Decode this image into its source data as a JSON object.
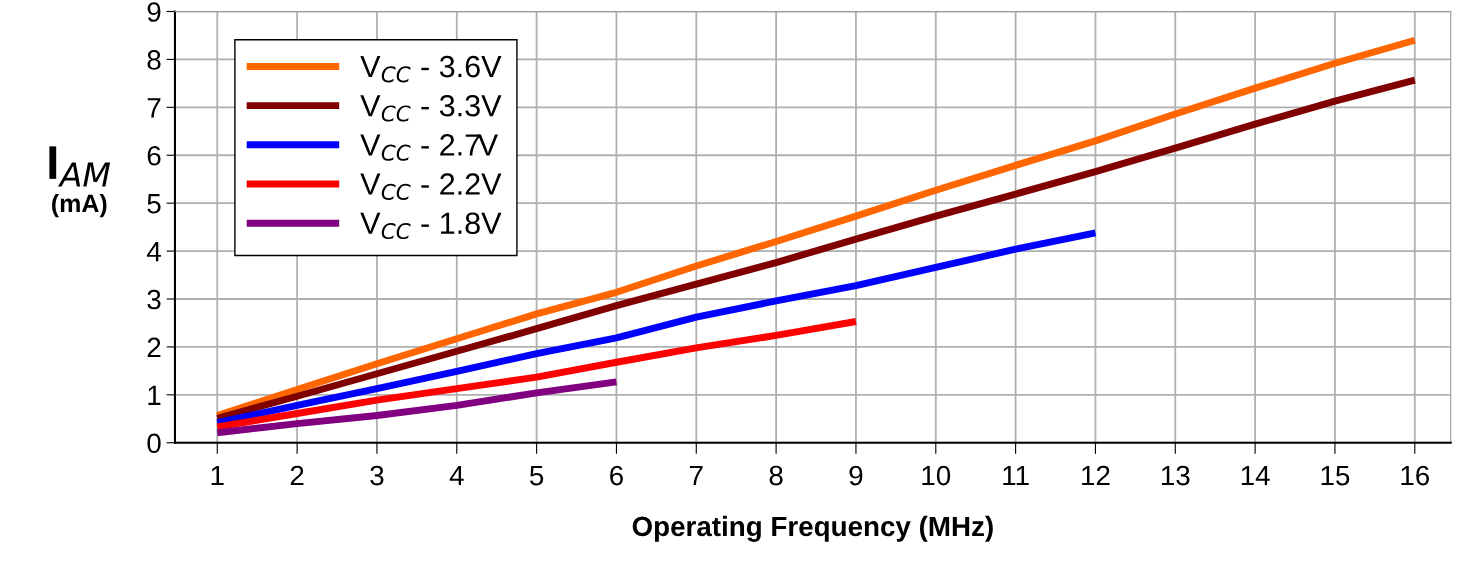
{
  "chart_data": {
    "type": "line",
    "xlabel": "Operating Frequency (MHz)",
    "ylabel": "I$_{AM}$\n(mA)",
    "x": [
      1,
      2,
      3,
      4,
      5,
      6,
      7,
      8,
      9,
      10,
      11,
      12,
      13,
      14,
      15,
      16
    ],
    "series": [
      {
        "name": "V$_{CC}$ - 3.6V",
        "color": "#ff6600",
        "values": [
          0.57,
          1.11,
          1.65,
          2.17,
          2.69,
          3.14,
          3.69,
          4.2,
          4.73,
          5.27,
          5.79,
          6.3,
          6.86,
          7.4,
          7.92,
          8.4
        ]
      },
      {
        "name": "V$_{CC}$ - 3.3V",
        "color": "#800000",
        "values": [
          0.51,
          0.97,
          1.44,
          1.91,
          2.38,
          2.86,
          3.31,
          3.76,
          4.25,
          4.73,
          5.19,
          5.66,
          6.15,
          6.65,
          7.13,
          7.57
        ]
      },
      {
        "name": "V$_{CC}$ - 2.7V",
        "color": "#0000ff",
        "values": [
          0.42,
          0.78,
          1.13,
          1.49,
          1.86,
          2.19,
          2.62,
          2.96,
          3.28,
          3.66,
          4.04,
          4.38,
          null,
          null,
          null,
          null
        ]
      },
      {
        "name": "V$_{CC}$ - 2.2V",
        "color": "#ff0000",
        "values": [
          0.33,
          0.61,
          0.89,
          1.13,
          1.37,
          1.68,
          1.98,
          2.24,
          2.53,
          null,
          null,
          null,
          null,
          null,
          null,
          null
        ]
      },
      {
        "name": "V$_{CC}$ - 1.8V",
        "color": "#800080",
        "values": [
          0.21,
          0.4,
          0.57,
          0.78,
          1.04,
          1.27,
          null,
          null,
          null,
          null,
          null,
          null,
          null,
          null,
          null,
          null
        ]
      }
    ],
    "xlim": [
      0.47,
      16.45
    ],
    "xticks": [
      1,
      2,
      3,
      4,
      5,
      6,
      7,
      8,
      9,
      10,
      11,
      12,
      13,
      14,
      15,
      16
    ],
    "ylim": [
      0,
      9
    ],
    "yticks": [
      0,
      1,
      2,
      3,
      4,
      5,
      6,
      7,
      8,
      9
    ],
    "grid": true,
    "legend": "top left",
    "marker": "none",
    "line_style": "solid"
  }
}
